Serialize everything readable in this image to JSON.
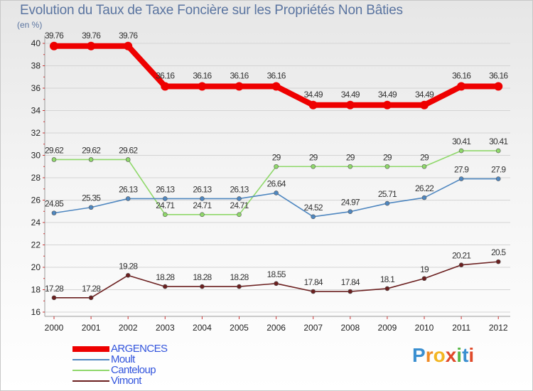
{
  "chart_data": {
    "type": "line",
    "title": "Evolution du Taux de Taxe Foncière sur les Propriétés Non Bâties",
    "ylabel": "(en %)",
    "xlabel": "",
    "categories": [
      "2000",
      "2001",
      "2002",
      "2003",
      "2004",
      "2005",
      "2006",
      "2007",
      "2008",
      "2009",
      "2010",
      "2011",
      "2012"
    ],
    "ylim": [
      16,
      40
    ],
    "yticks": [
      16,
      18,
      20,
      22,
      24,
      26,
      28,
      30,
      32,
      34,
      36,
      38,
      40
    ],
    "series": [
      {
        "name": "ARGENCES",
        "color": "#ee0000",
        "values": [
          39.76,
          39.76,
          39.76,
          36.16,
          36.16,
          36.16,
          36.16,
          34.49,
          34.49,
          34.49,
          34.49,
          36.16,
          36.16
        ],
        "labels": [
          "39.76",
          "39.76",
          "39.76",
          "36.16",
          "36.16",
          "36.16",
          "36.16",
          "34.49",
          "34.49",
          "34.49",
          "34.49",
          "36.16",
          "36.16"
        ]
      },
      {
        "name": "Moult",
        "color": "#4f87c0",
        "values": [
          24.85,
          25.35,
          26.13,
          26.13,
          26.13,
          26.13,
          26.64,
          24.52,
          24.97,
          25.71,
          26.22,
          27.9,
          27.9
        ],
        "labels": [
          "24.85",
          "25.35",
          "26.13",
          "26.13",
          "26.13",
          "26.13",
          "26.64",
          "24.52",
          "24.97",
          "25.71",
          "26.22",
          "27.9",
          "27.9"
        ]
      },
      {
        "name": "Canteloup",
        "color": "#8fd86a",
        "values": [
          29.62,
          29.62,
          29.62,
          24.71,
          24.71,
          24.71,
          29,
          29,
          29,
          29,
          29,
          30.41,
          30.41
        ],
        "labels": [
          "29.62",
          "29.62",
          "29.62",
          "24.71",
          "24.71",
          "24.71",
          "29",
          "29",
          "29",
          "29",
          "29",
          "30.41",
          "30.41"
        ]
      },
      {
        "name": "Vimont",
        "color": "#6b1f1f",
        "values": [
          17.28,
          17.28,
          19.28,
          18.28,
          18.28,
          18.28,
          18.55,
          17.84,
          17.84,
          18.1,
          19,
          20.21,
          20.5
        ],
        "labels": [
          "17.28",
          "17.28",
          "19.28",
          "18.28",
          "18.28",
          "18.28",
          "18.55",
          "17.84",
          "17.84",
          "18.1",
          "19",
          "20.21",
          "20.5"
        ]
      }
    ]
  },
  "legend": {
    "items": [
      {
        "label": "ARGENCES",
        "color": "#ee0000",
        "text_color": "#3355dd"
      },
      {
        "label": "Moult",
        "color": "#4f87c0",
        "text_color": "#3355dd"
      },
      {
        "label": "Canteloup",
        "color": "#8fd86a",
        "text_color": "#3355dd"
      },
      {
        "label": "Vimont",
        "color": "#6b1f1f",
        "text_color": "#3355dd"
      }
    ]
  },
  "logo": {
    "text": "Proxiti"
  }
}
